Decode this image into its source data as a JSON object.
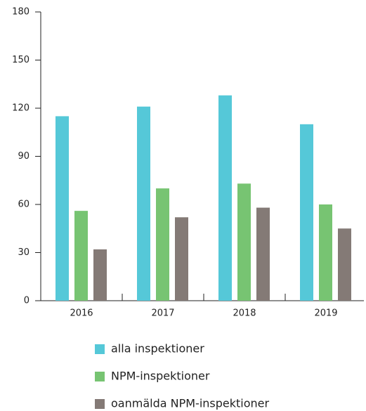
{
  "chart_data": {
    "type": "bar",
    "categories": [
      "2016",
      "2017",
      "2018",
      "2019"
    ],
    "series": [
      {
        "name": "alla inspektioner",
        "color": "#55c8d8",
        "values": [
          115,
          121,
          128,
          110
        ]
      },
      {
        "name": "NPM-inspektioner",
        "color": "#77c472",
        "values": [
          56,
          70,
          73,
          60
        ]
      },
      {
        "name": "oanmälda NPM-inspektioner",
        "color": "#847a76",
        "values": [
          32,
          52,
          58,
          45
        ]
      }
    ],
    "ylim": [
      0,
      180
    ],
    "yticks": [
      0,
      30,
      60,
      90,
      120,
      150,
      180
    ],
    "grid": false
  }
}
